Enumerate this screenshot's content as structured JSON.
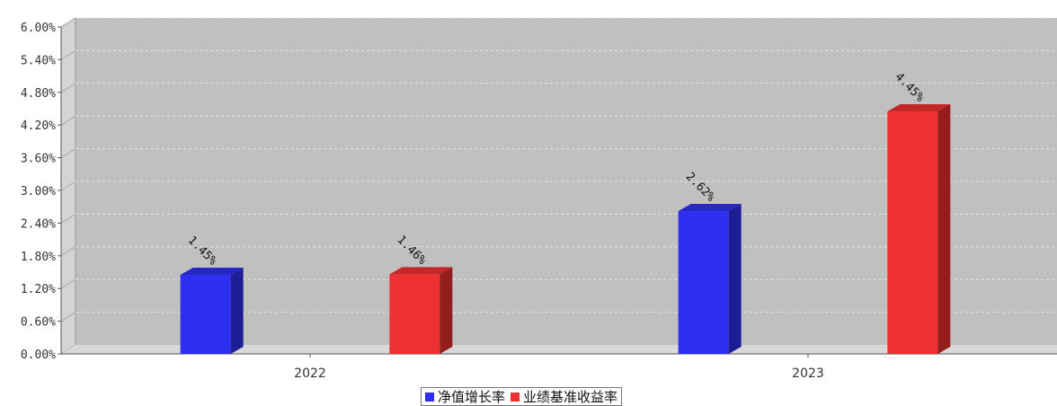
{
  "chart_data": {
    "type": "bar",
    "categories": [
      "2022",
      "2023"
    ],
    "series": [
      {
        "name": "净值增长率",
        "values": [
          1.45,
          2.62
        ],
        "color": "#2e2ff0"
      },
      {
        "name": "业绩基准收益率",
        "values": [
          1.46,
          4.45
        ],
        "color": "#ee3030"
      }
    ],
    "data_labels": [
      [
        "1.45%",
        "2.62%"
      ],
      [
        "1.46%",
        "4.45%"
      ]
    ],
    "y_ticks": [
      "0.00%",
      "0.60%",
      "1.20%",
      "1.80%",
      "2.40%",
      "3.00%",
      "3.60%",
      "4.20%",
      "4.80%",
      "5.40%",
      "6.00%"
    ],
    "ylim": [
      0,
      6
    ],
    "grid": true,
    "legend_position": "bottom-center",
    "title": "",
    "xlabel": "",
    "ylabel": ""
  },
  "colors": {
    "plot_background": "#c0c0c0",
    "floor": "#d8d8d8",
    "grid": "#e6e6e6"
  }
}
